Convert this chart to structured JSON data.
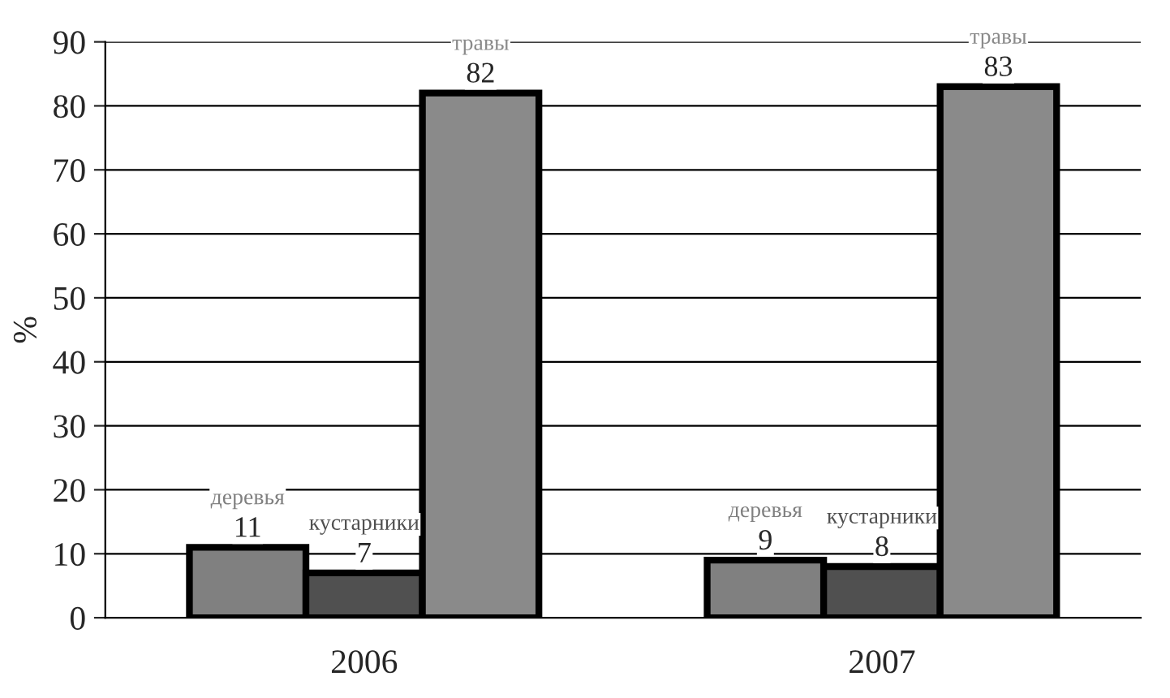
{
  "chart_data": {
    "type": "bar",
    "ylabel": "%",
    "categories": [
      "2006",
      "2007"
    ],
    "series": [
      {
        "name": "деревья",
        "color": "#808080",
        "values": [
          11,
          9
        ]
      },
      {
        "name": "кустарники",
        "color": "#505050",
        "values": [
          7,
          8
        ]
      },
      {
        "name": "травы",
        "color": "#8a8a8a",
        "values": [
          82,
          83
        ]
      }
    ],
    "ylim": [
      0,
      90
    ],
    "yticks": [
      0,
      10,
      20,
      30,
      40,
      50,
      60,
      70,
      80,
      90
    ],
    "grid": "y",
    "data_labels": true,
    "legend": false
  }
}
